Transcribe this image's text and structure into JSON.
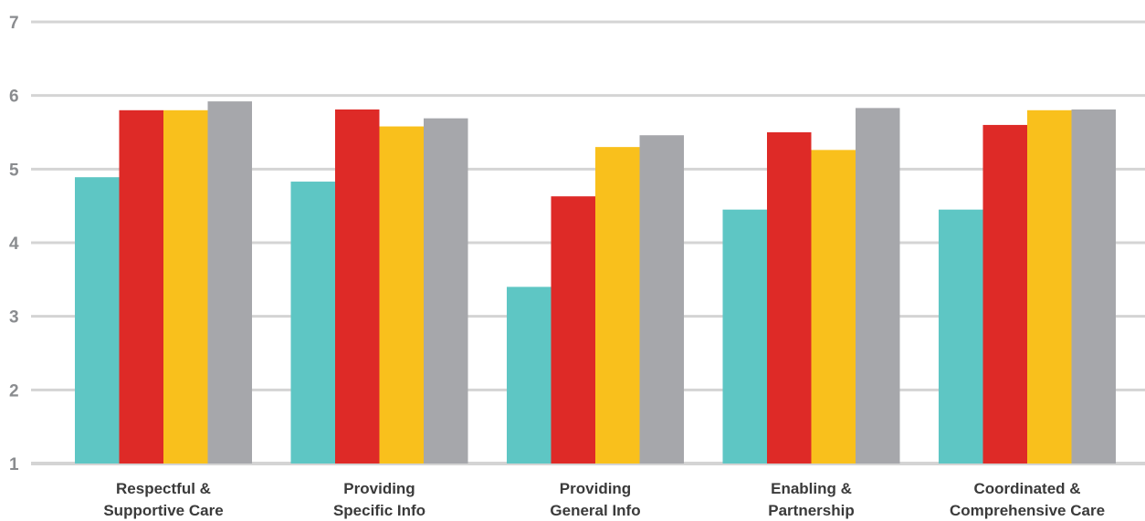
{
  "chart_data": {
    "type": "bar",
    "title": "",
    "xlabel": "",
    "ylabel": "",
    "ylim": [
      1,
      7
    ],
    "yticks": [
      1,
      2,
      3,
      4,
      5,
      6,
      7
    ],
    "grid": true,
    "legend": "none",
    "categories": [
      [
        "Respectful &",
        "Supportive Care"
      ],
      [
        "Providing",
        "Specific Info"
      ],
      [
        "Providing",
        "General Info"
      ],
      [
        "Enabling &",
        "Partnership"
      ],
      [
        "Coordinated &",
        "Comprehensive Care"
      ]
    ],
    "series": [
      {
        "color": "#5ec6c4",
        "values": [
          4.89,
          4.83,
          3.4,
          4.45,
          4.45
        ]
      },
      {
        "color": "#de2a27",
        "values": [
          5.8,
          5.81,
          4.63,
          5.5,
          5.6
        ]
      },
      {
        "color": "#f9c01c",
        "values": [
          5.8,
          5.58,
          5.3,
          5.26,
          5.8
        ]
      },
      {
        "color": "#a6a7ab",
        "values": [
          5.92,
          5.69,
          5.46,
          5.83,
          5.81
        ]
      }
    ],
    "grid_color": "#d4d4d4"
  }
}
